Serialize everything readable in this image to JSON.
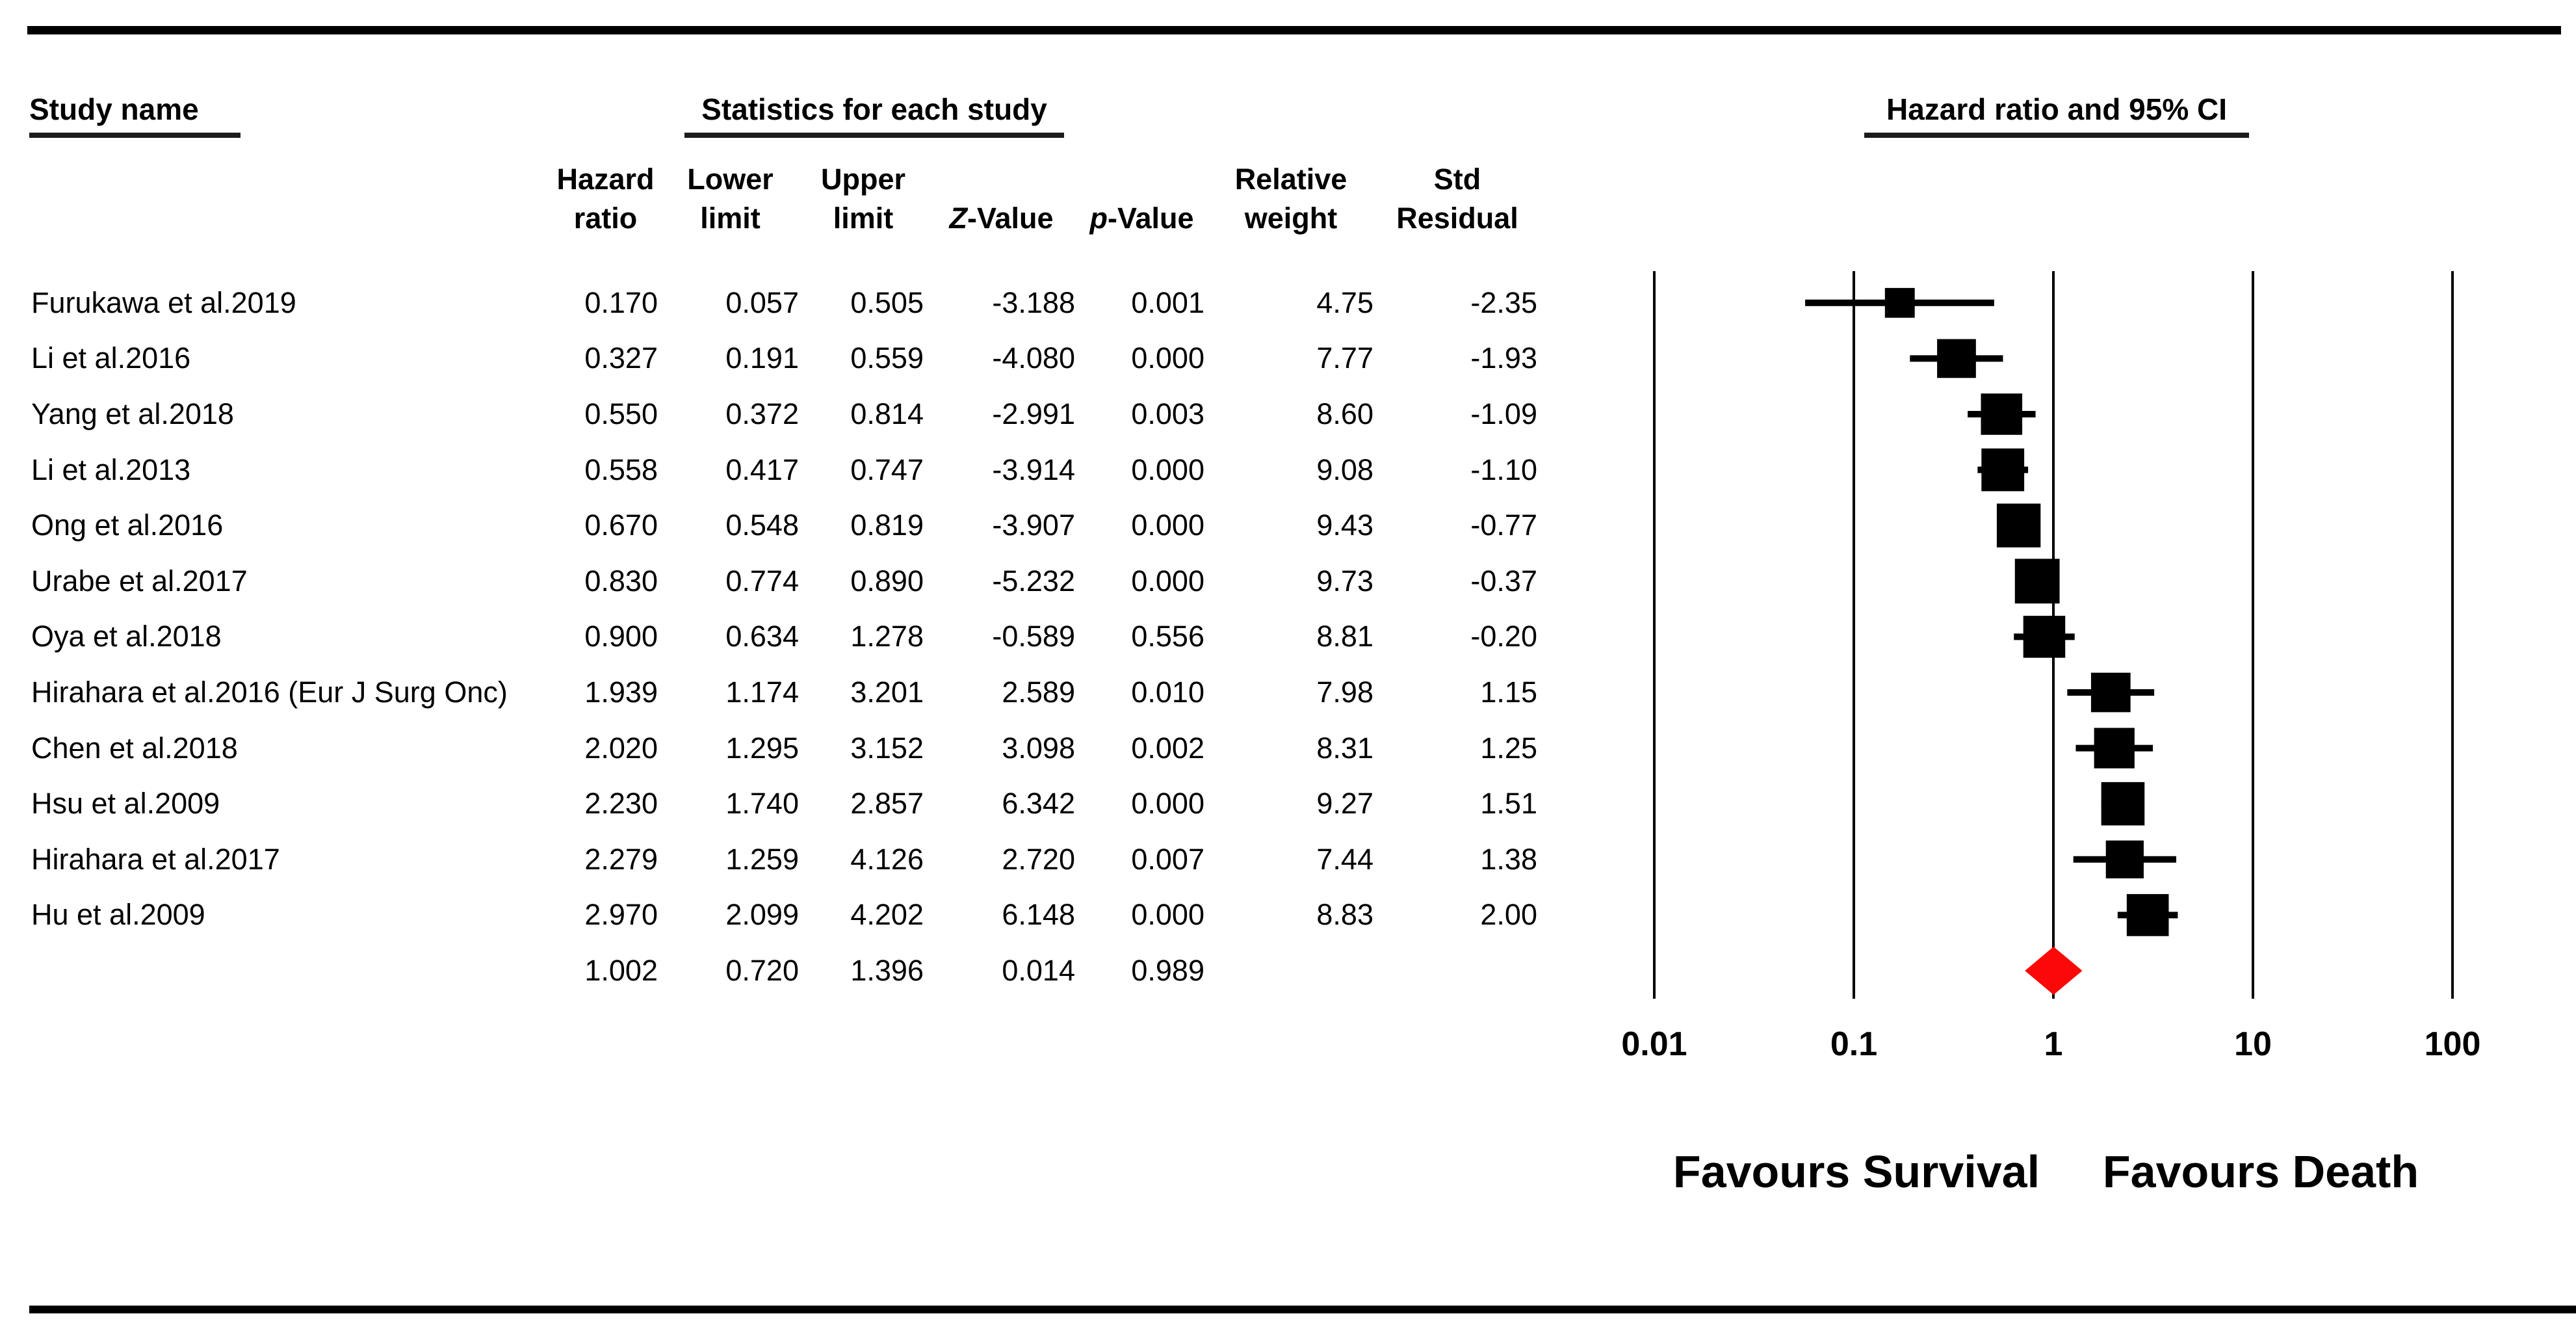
{
  "figure": {
    "study_col_header": "Study name",
    "stats_col_header": "Statistics for each study",
    "plot_col_header": "Hazard ratio and 95% CI",
    "columns": {
      "hazard_ratio": [
        "Hazard",
        "ratio"
      ],
      "lower_limit": [
        "Lower",
        "limit"
      ],
      "upper_limit": [
        "Upper",
        "limit"
      ],
      "z_value": {
        "italic": "Z",
        "rest": "-Value"
      },
      "p_value": {
        "italic": "p",
        "rest": "-Value"
      },
      "relative_weight": [
        "Relative",
        "weight"
      ],
      "std_residual": [
        "Std",
        "Residual"
      ]
    }
  },
  "chart_data": {
    "type": "scatter",
    "variant": "forest-plot",
    "x_scale": "log10",
    "x_range": [
      0.01,
      100
    ],
    "x_ticks": [
      "0.01",
      "0.1",
      "1",
      "10",
      "100"
    ],
    "grid": "vertical-reference-lines",
    "marker_color": "#000000",
    "diamond_color": "#fb0808",
    "studies": [
      {
        "name": "Furukawa et al.2019",
        "hazard_ratio": "0.170",
        "lower_limit": "0.057",
        "upper_limit": "0.505",
        "z_value": "-3.188",
        "p_value": "0.001",
        "relative_weight": "4.75",
        "std_residual": "-2.35"
      },
      {
        "name": "Li et al.2016",
        "hazard_ratio": "0.327",
        "lower_limit": "0.191",
        "upper_limit": "0.559",
        "z_value": "-4.080",
        "p_value": "0.000",
        "relative_weight": "7.77",
        "std_residual": "-1.93"
      },
      {
        "name": "Yang et al.2018",
        "hazard_ratio": "0.550",
        "lower_limit": "0.372",
        "upper_limit": "0.814",
        "z_value": "-2.991",
        "p_value": "0.003",
        "relative_weight": "8.60",
        "std_residual": "-1.09"
      },
      {
        "name": "Li et al.2013",
        "hazard_ratio": "0.558",
        "lower_limit": "0.417",
        "upper_limit": "0.747",
        "z_value": "-3.914",
        "p_value": "0.000",
        "relative_weight": "9.08",
        "std_residual": "-1.10"
      },
      {
        "name": "Ong et al.2016",
        "hazard_ratio": "0.670",
        "lower_limit": "0.548",
        "upper_limit": "0.819",
        "z_value": "-3.907",
        "p_value": "0.000",
        "relative_weight": "9.43",
        "std_residual": "-0.77"
      },
      {
        "name": "Urabe et al.2017",
        "hazard_ratio": "0.830",
        "lower_limit": "0.774",
        "upper_limit": "0.890",
        "z_value": "-5.232",
        "p_value": "0.000",
        "relative_weight": "9.73",
        "std_residual": "-0.37"
      },
      {
        "name": "Oya et al.2018",
        "hazard_ratio": "0.900",
        "lower_limit": "0.634",
        "upper_limit": "1.278",
        "z_value": "-0.589",
        "p_value": "0.556",
        "relative_weight": "8.81",
        "std_residual": "-0.20"
      },
      {
        "name": "Hirahara et al.2016 (Eur J Surg Onc)",
        "hazard_ratio": "1.939",
        "lower_limit": "1.174",
        "upper_limit": "3.201",
        "z_value": "2.589",
        "p_value": "0.010",
        "relative_weight": "7.98",
        "std_residual": "1.15"
      },
      {
        "name": "Chen et al.2018",
        "hazard_ratio": "2.020",
        "lower_limit": "1.295",
        "upper_limit": "3.152",
        "z_value": "3.098",
        "p_value": "0.002",
        "relative_weight": "8.31",
        "std_residual": "1.25"
      },
      {
        "name": "Hsu et al.2009",
        "hazard_ratio": "2.230",
        "lower_limit": "1.740",
        "upper_limit": "2.857",
        "z_value": "6.342",
        "p_value": "0.000",
        "relative_weight": "9.27",
        "std_residual": "1.51"
      },
      {
        "name": "Hirahara et al.2017",
        "hazard_ratio": "2.279",
        "lower_limit": "1.259",
        "upper_limit": "4.126",
        "z_value": "2.720",
        "p_value": "0.007",
        "relative_weight": "7.44",
        "std_residual": "1.38"
      },
      {
        "name": "Hu et al.2009",
        "hazard_ratio": "2.970",
        "lower_limit": "2.099",
        "upper_limit": "4.202",
        "z_value": "6.148",
        "p_value": "0.000",
        "relative_weight": "8.83",
        "std_residual": "2.00"
      }
    ],
    "summary": {
      "hazard_ratio": "1.002",
      "lower_limit": "0.720",
      "upper_limit": "1.396",
      "z_value": "0.014",
      "p_value": "0.989"
    },
    "footer_labels": [
      "Favours Survival",
      "Favours Death"
    ]
  }
}
